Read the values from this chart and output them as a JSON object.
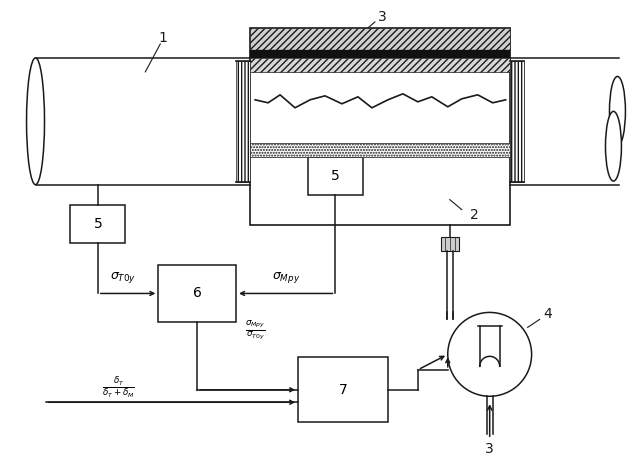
{
  "bg_color": "#ffffff",
  "line_color": "#1a1a1a",
  "fig_width": 6.4,
  "fig_height": 4.58,
  "dpi": 100
}
